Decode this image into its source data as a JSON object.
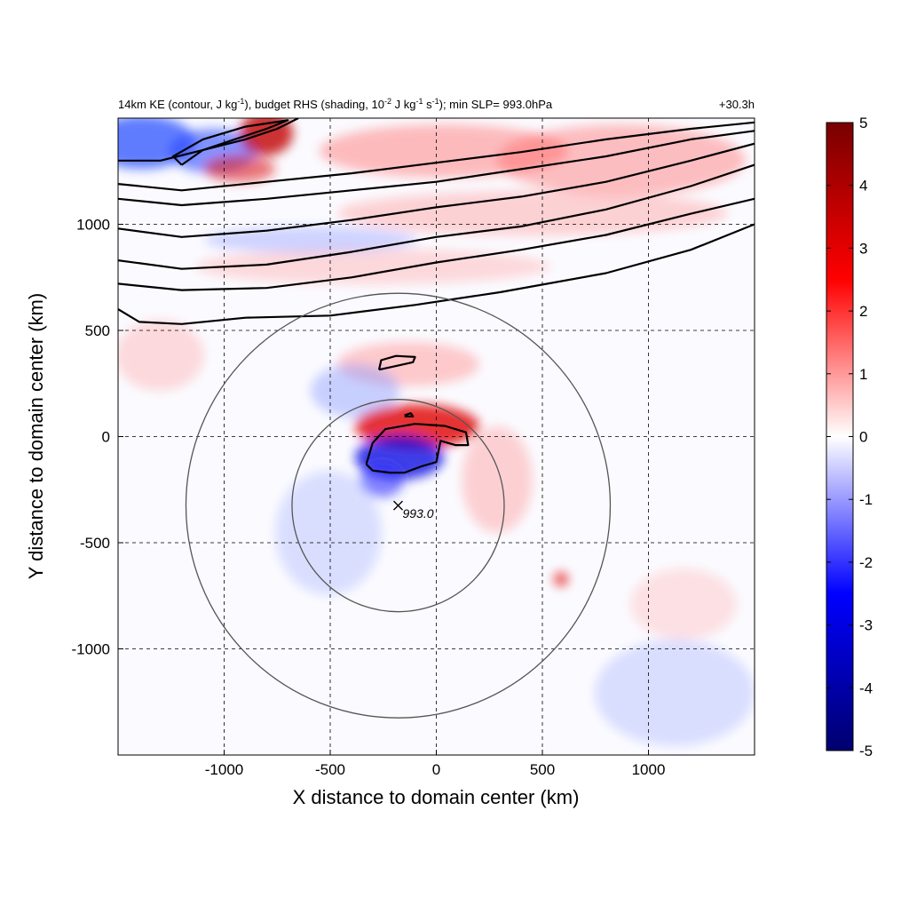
{
  "chart_data": {
    "type": "heatmap",
    "title_left_parts": {
      "p1": "14km KE (contour, J kg",
      "s1": "-1",
      "p2": "), budget RHS (shading, 10",
      "s2": "-2",
      "p3": " J kg",
      "s3": "-1",
      "p4": " s",
      "s4": "-1",
      "p5": "); min SLP= 993.0hPa"
    },
    "title_right": "+30.3h",
    "xlabel": "X distance to domain center (km)",
    "ylabel": "Y distance to domain center (km)",
    "xlim": [
      -1500,
      1500
    ],
    "ylim": [
      -1500,
      1500
    ],
    "xticks": [
      -1000,
      -500,
      0,
      500,
      1000
    ],
    "yticks": [
      -1000,
      -500,
      0,
      500,
      1000
    ],
    "grid": true,
    "grid_style": "dashed",
    "colorbar": {
      "min": -5,
      "max": 5,
      "ticks": [
        -5,
        -4,
        -3,
        -2,
        -1,
        0,
        1,
        2,
        3,
        4,
        5
      ],
      "colormap": [
        "#00006e",
        "#0000ff",
        "#ffffff",
        "#ff0000",
        "#780000"
      ]
    },
    "center_marker": {
      "label": "993.0",
      "x": -180,
      "y": -325
    },
    "circles": [
      {
        "center": [
          -180,
          -325
        ],
        "radius": 500
      },
      {
        "center": [
          -180,
          -325
        ],
        "radius": 1000
      }
    ],
    "ke_contours": [
      [
        [
          -1500,
          600
        ],
        [
          -1400,
          540
        ],
        [
          -1200,
          530
        ],
        [
          -900,
          560
        ],
        [
          -500,
          570
        ],
        [
          -100,
          620
        ],
        [
          300,
          680
        ],
        [
          800,
          770
        ],
        [
          1200,
          880
        ],
        [
          1500,
          1000
        ]
      ],
      [
        [
          -1500,
          720
        ],
        [
          -1200,
          690
        ],
        [
          -800,
          700
        ],
        [
          -400,
          750
        ],
        [
          0,
          820
        ],
        [
          400,
          880
        ],
        [
          800,
          950
        ],
        [
          1200,
          1050
        ],
        [
          1500,
          1120
        ]
      ],
      [
        [
          -1500,
          830
        ],
        [
          -1200,
          790
        ],
        [
          -800,
          810
        ],
        [
          -400,
          870
        ],
        [
          0,
          940
        ],
        [
          400,
          990
        ],
        [
          800,
          1070
        ],
        [
          1200,
          1180
        ],
        [
          1500,
          1280
        ]
      ],
      [
        [
          -1500,
          980
        ],
        [
          -1200,
          940
        ],
        [
          -800,
          970
        ],
        [
          -400,
          1020
        ],
        [
          0,
          1080
        ],
        [
          400,
          1130
        ],
        [
          800,
          1200
        ],
        [
          1200,
          1300
        ],
        [
          1500,
          1380
        ]
      ],
      [
        [
          -1500,
          1120
        ],
        [
          -1200,
          1090
        ],
        [
          -800,
          1120
        ],
        [
          -400,
          1160
        ],
        [
          0,
          1200
        ],
        [
          400,
          1260
        ],
        [
          800,
          1320
        ],
        [
          1200,
          1400
        ],
        [
          1500,
          1440
        ]
      ],
      [
        [
          -1500,
          1190
        ],
        [
          -1200,
          1160
        ],
        [
          -800,
          1200
        ],
        [
          -400,
          1240
        ],
        [
          0,
          1290
        ],
        [
          400,
          1340
        ],
        [
          800,
          1400
        ],
        [
          1200,
          1450
        ],
        [
          1500,
          1480
        ]
      ],
      [
        [
          -1500,
          1300
        ],
        [
          -1300,
          1300
        ],
        [
          -1100,
          1350
        ],
        [
          -900,
          1400
        ],
        [
          -750,
          1450
        ],
        [
          -650,
          1500
        ]
      ],
      [
        [
          -1200,
          1280
        ],
        [
          -1100,
          1350
        ],
        [
          -950,
          1400
        ],
        [
          -800,
          1450
        ],
        [
          -700,
          1490
        ],
        [
          -900,
          1460
        ],
        [
          -1100,
          1400
        ],
        [
          -1240,
          1320
        ],
        [
          -1200,
          1280
        ]
      ],
      [
        [
          -270,
          315
        ],
        [
          -200,
          330
        ],
        [
          -110,
          350
        ],
        [
          -100,
          375
        ],
        [
          -190,
          380
        ],
        [
          -260,
          360
        ],
        [
          -270,
          315
        ]
      ],
      [
        [
          -330,
          -130
        ],
        [
          -300,
          -30
        ],
        [
          -240,
          35
        ],
        [
          -100,
          60
        ],
        [
          40,
          50
        ],
        [
          140,
          20
        ],
        [
          150,
          -40
        ],
        [
          90,
          -40
        ],
        [
          20,
          -20
        ],
        [
          0,
          -120
        ],
        [
          -70,
          -140
        ],
        [
          -150,
          -170
        ],
        [
          -220,
          -170
        ],
        [
          -300,
          -160
        ],
        [
          -330,
          -130
        ]
      ],
      [
        [
          -150,
          100
        ],
        [
          -120,
          110
        ],
        [
          -110,
          95
        ],
        [
          -150,
          95
        ]
      ]
    ]
  }
}
